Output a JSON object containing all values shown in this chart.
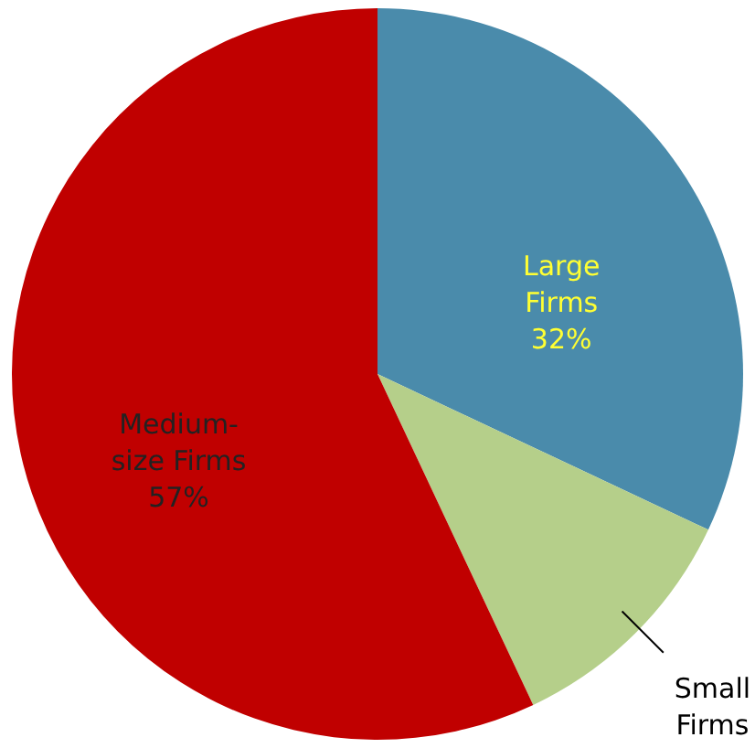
{
  "chart_data": {
    "type": "pie",
    "categories": [
      "Large Firms",
      "Small Firms",
      "Medium-size Firms"
    ],
    "values": [
      32,
      11,
      57
    ],
    "colors": [
      "#4a8bab",
      "#b5cf8a",
      "#c00000"
    ],
    "value_labels": [
      "32%",
      null,
      "57%"
    ]
  }
}
